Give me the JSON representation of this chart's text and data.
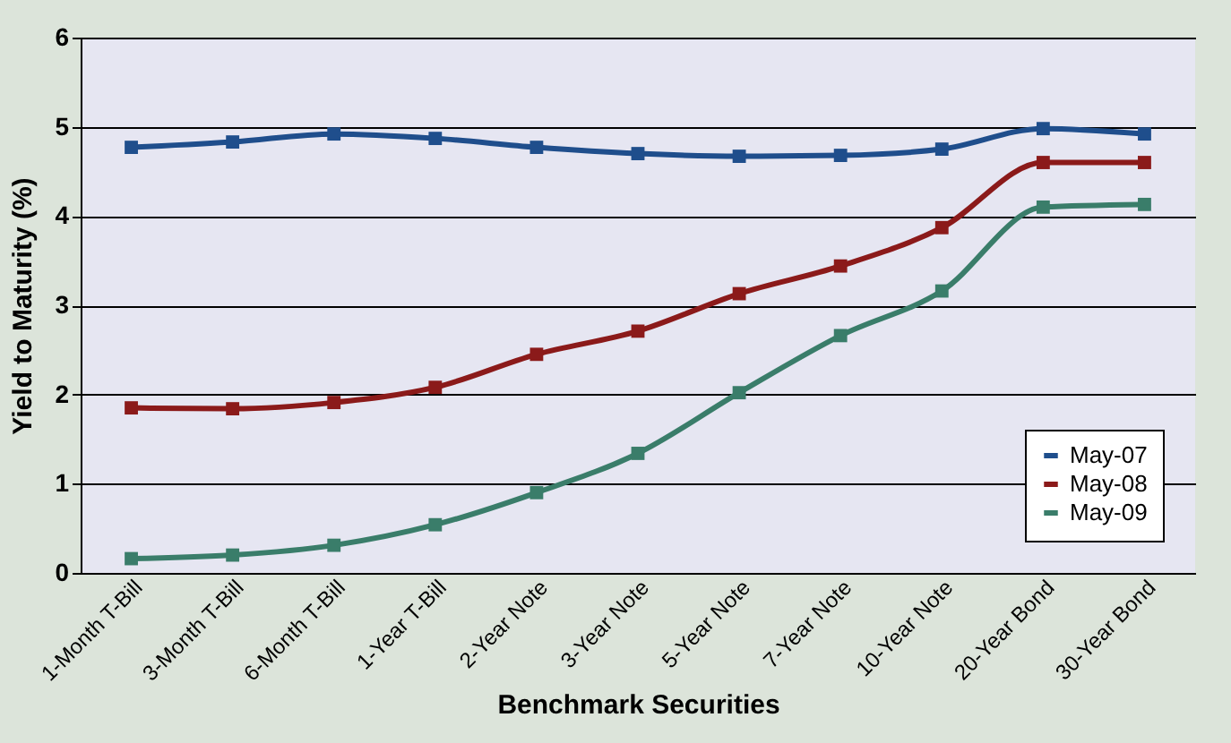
{
  "chart_data": {
    "type": "line",
    "xlabel": "Benchmark Securities",
    "ylabel": "Yield to Maturity (%)",
    "categories": [
      "1-Month T-Bill",
      "3-Month T-Bill",
      "6-Month T-Bill",
      "1-Year T-Bill",
      "2-Year Note",
      "3-Year Note",
      "5-Year Note",
      "7-Year Note",
      "10-Year Note",
      "20-Year Bond",
      "30-Year Bond"
    ],
    "series": [
      {
        "name": "May-07",
        "color": "#1f4e8c",
        "values": [
          4.77,
          4.83,
          4.92,
          4.87,
          4.77,
          4.7,
          4.67,
          4.68,
          4.75,
          4.98,
          4.92
        ]
      },
      {
        "name": "May-08",
        "color": "#8b1a1a",
        "values": [
          1.85,
          1.84,
          1.91,
          2.08,
          2.45,
          2.71,
          3.13,
          3.44,
          3.87,
          4.6,
          4.6
        ]
      },
      {
        "name": "May-09",
        "color": "#3a7d6a",
        "values": [
          0.16,
          0.2,
          0.31,
          0.54,
          0.9,
          1.34,
          2.02,
          2.66,
          3.16,
          4.1,
          4.13
        ]
      }
    ],
    "ylim": [
      0,
      6
    ],
    "yticks": [
      0,
      1,
      2,
      3,
      4,
      5,
      6
    ],
    "grid": "y",
    "legend": "bottom right",
    "marker": "square",
    "line_style": "solid"
  }
}
